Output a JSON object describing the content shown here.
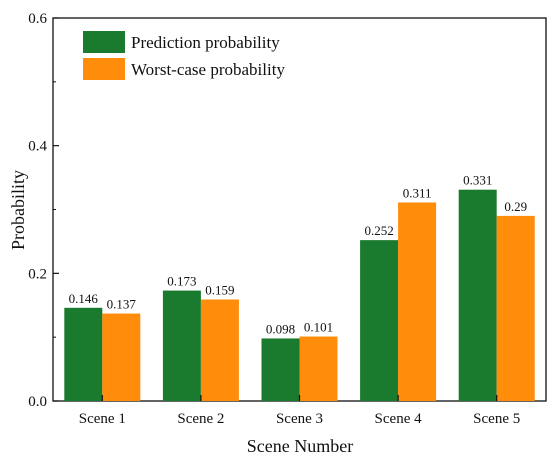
{
  "chart_data": {
    "type": "bar",
    "title": "",
    "xlabel": "Scene Number",
    "ylabel": "Probability",
    "ylim": [
      0,
      0.6
    ],
    "yticks": [
      "0.0",
      "0.2",
      "0.4",
      "0.6"
    ],
    "categories": [
      "Scene 1",
      "Scene 2",
      "Scene 3",
      "Scene 4",
      "Scene 5"
    ],
    "series": [
      {
        "name": "Prediction probability",
        "color": "#1a7a2e",
        "values": [
          0.146,
          0.173,
          0.098,
          0.252,
          0.331
        ],
        "labels": [
          "0.146",
          "0.173",
          "0.098",
          "0.252",
          "0.331"
        ]
      },
      {
        "name": "Worst-case probability",
        "color": "#ff8c0a",
        "values": [
          0.137,
          0.159,
          0.101,
          0.311,
          0.29
        ],
        "labels": [
          "0.137",
          "0.159",
          "0.101",
          "0.311",
          "0.29"
        ]
      }
    ],
    "grid": false,
    "legend_position": "top-left"
  }
}
